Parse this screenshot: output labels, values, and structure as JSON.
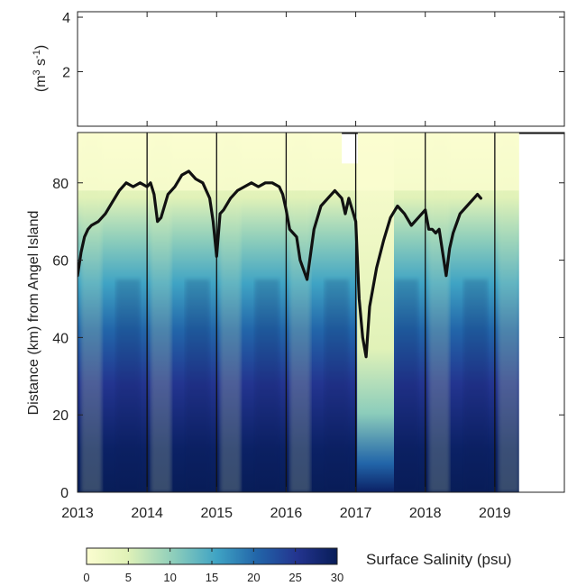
{
  "chart_data": [
    {
      "panel": "top",
      "type": "line",
      "ylabel_main": "(m",
      "ylabel_sup1": "3",
      "ylabel_mid": " s",
      "ylabel_sup2": "-1",
      "ylabel_end": ")",
      "ylim": [
        0,
        4.2
      ],
      "yticks": [
        2,
        4
      ],
      "ytick_labels": [
        "2",
        "4"
      ],
      "xlim": [
        2013,
        2020
      ],
      "series": []
    },
    {
      "panel": "bottom",
      "type": "heatmap",
      "ylabel": "Distance (km) from Angel Island",
      "xlim": [
        2013,
        2020
      ],
      "ylim": [
        0,
        93
      ],
      "xticks": [
        2013,
        2014,
        2015,
        2016,
        2017,
        2018,
        2019
      ],
      "xtick_labels": [
        "2013",
        "2014",
        "2015",
        "2016",
        "2017",
        "2018",
        "2019"
      ],
      "yticks": [
        0,
        20,
        40,
        60,
        80
      ],
      "ytick_labels": [
        "0",
        "20",
        "40",
        "60",
        "80"
      ],
      "year_lines": [
        2014,
        2015,
        2016,
        2017,
        2018,
        2019
      ],
      "data_end": 2019.35,
      "gap": [
        2016.8,
        2017.03
      ],
      "isohaline": {
        "x": [
          2013.0,
          2013.05,
          2013.1,
          2013.15,
          2013.2,
          2013.3,
          2013.4,
          2013.5,
          2013.6,
          2013.7,
          2013.8,
          2013.9,
          2014.0,
          2014.05,
          2014.1,
          2014.15,
          2014.2,
          2014.3,
          2014.4,
          2014.5,
          2014.6,
          2014.7,
          2014.8,
          2014.9,
          2014.95,
          2015.0,
          2015.05,
          2015.1,
          2015.2,
          2015.3,
          2015.4,
          2015.5,
          2015.6,
          2015.7,
          2015.8,
          2015.9,
          2015.95,
          2016.0,
          2016.05,
          2016.1,
          2016.15,
          2016.2,
          2016.3,
          2016.4,
          2016.5,
          2016.6,
          2016.7,
          2016.8,
          2016.85,
          2016.9,
          2017.0,
          2017.05,
          2017.1,
          2017.15,
          2017.2,
          2017.3,
          2017.4,
          2017.5,
          2017.6,
          2017.7,
          2017.8,
          2017.9,
          2018.0,
          2018.05,
          2018.1,
          2018.15,
          2018.2,
          2018.25,
          2018.3,
          2018.35,
          2018.4,
          2018.5,
          2018.6,
          2018.7,
          2018.75,
          2018.8
        ],
        "y": [
          56,
          62,
          66,
          68,
          69,
          70,
          72,
          75,
          78,
          80,
          79,
          80,
          79,
          80,
          77,
          70,
          71,
          77,
          79,
          82,
          83,
          81,
          80,
          76,
          70,
          61,
          72,
          73,
          76,
          78,
          79,
          80,
          79,
          80,
          80,
          79,
          77,
          73,
          68,
          67,
          66,
          60,
          55,
          68,
          74,
          76,
          78,
          76,
          72,
          76,
          70,
          50,
          40,
          35,
          48,
          58,
          65,
          71,
          74,
          72,
          69,
          71,
          73,
          68,
          68,
          67,
          68,
          62,
          56,
          63,
          67,
          72,
          74,
          76,
          77,
          76
        ]
      },
      "colorbar": {
        "label": "Surface Salinity (psu)",
        "ticks": [
          0,
          5,
          10,
          15,
          20,
          25,
          30
        ],
        "tick_labels": [
          "0",
          "5",
          "10",
          "15",
          "20",
          "25",
          "30"
        ],
        "colors": [
          "#fbfdd0",
          "#e1f2b8",
          "#8ccdbb",
          "#3fa3c4",
          "#2265a9",
          "#23348f",
          "#081d58"
        ]
      }
    }
  ]
}
